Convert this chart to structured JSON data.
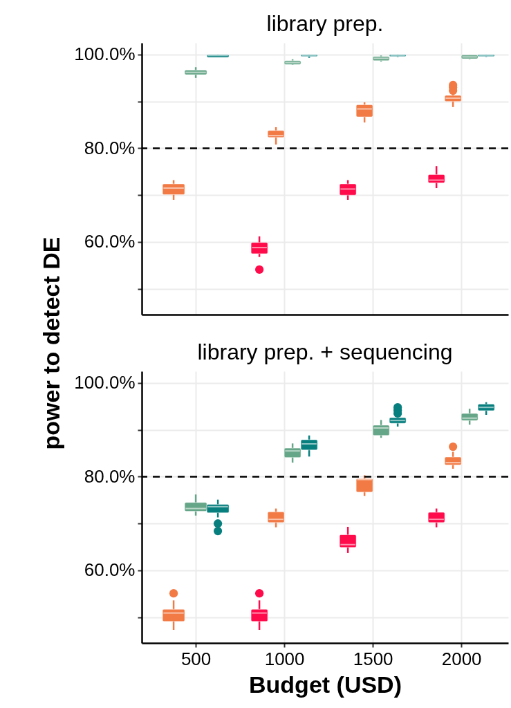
{
  "chart_data": [
    {
      "type": "box",
      "title": "library prep.",
      "ylabel": "power to detect DE",
      "categories": [
        "500",
        "1000",
        "1500",
        "2000"
      ],
      "ylim": [
        44.5,
        102.5
      ],
      "yticks": [
        {
          "value": 50,
          "label": null
        },
        {
          "value": 60,
          "label": "60.0%"
        },
        {
          "value": 70,
          "label": null
        },
        {
          "value": 80,
          "label": "80.0%"
        },
        {
          "value": 90,
          "label": null
        },
        {
          "value": 100,
          "label": "100.0%"
        }
      ],
      "grid": true,
      "tick_labels": "y",
      "ref_lines": [
        {
          "axis": "y",
          "value": 80,
          "color": "#000000",
          "line_style": "dashed"
        }
      ],
      "series": [
        {
          "color": "#ff0a4a",
          "boxes": [
            null,
            {
              "low": 56.8,
              "q1": 57.5,
              "median": 58.8,
              "q3": 59.9,
              "high": 61.2,
              "outliers": [
                54.1
              ]
            },
            {
              "low": 69.0,
              "q1": 70.0,
              "median": 71.3,
              "q3": 72.4,
              "high": 73.2
            },
            {
              "low": 71.5,
              "q1": 72.6,
              "median": 73.2,
              "q3": 74.4,
              "high": 76.2
            }
          ]
        },
        {
          "color": "#f27a45",
          "boxes": [
            {
              "low": 69.0,
              "q1": 70.1,
              "median": 71.5,
              "q3": 72.4,
              "high": 73.2
            },
            {
              "low": 80.8,
              "q1": 82.3,
              "median": 82.7,
              "q3": 83.8,
              "high": 84.5
            },
            {
              "low": 85.5,
              "q1": 86.7,
              "median": 88.4,
              "q3": 89.3,
              "high": 89.8
            },
            {
              "low": 88.8,
              "q1": 90.0,
              "median": 90.7,
              "q3": 91.3,
              "high": 91.5,
              "outliers": [
                92.3,
                93.0,
                93.5
              ]
            }
          ]
        },
        {
          "color": "#66a688",
          "boxes": [
            {
              "low": 95.0,
              "q1": 95.7,
              "median": 96.2,
              "q3": 96.7,
              "high": 97.3
            },
            {
              "low": 97.8,
              "q1": 97.9,
              "median": 98.3,
              "q3": 98.7,
              "high": 99.0
            },
            {
              "low": 98.5,
              "q1": 98.7,
              "median": 99.2,
              "q3": 99.6,
              "high": 99.8
            },
            {
              "low": 99.0,
              "q1": 99.1,
              "median": 99.5,
              "q3": 99.9,
              "high": 99.9
            }
          ]
        },
        {
          "color": "#087f7f",
          "boxes": [
            {
              "low": 99.4,
              "q1": 99.4,
              "median": 99.8,
              "q3": 100.0,
              "high": 100.0
            },
            {
              "low": 99.3,
              "q1": 99.6,
              "median": 99.8,
              "q3": 100.0,
              "high": 100.0
            },
            {
              "low": 99.5,
              "q1": 99.6,
              "median": 99.8,
              "q3": 100.0,
              "high": 100.0
            },
            {
              "low": 99.5,
              "q1": 99.6,
              "median": 99.8,
              "q3": 100.0,
              "high": 100.0
            }
          ]
        }
      ]
    },
    {
      "type": "box",
      "title": "library prep. + sequencing",
      "xlabel": "Budget (USD)",
      "categories": [
        "500",
        "1000",
        "1500",
        "2000"
      ],
      "ylim": [
        44.5,
        102.5
      ],
      "yticks": [
        {
          "value": 50,
          "label": null
        },
        {
          "value": 60,
          "label": "60.0%"
        },
        {
          "value": 70,
          "label": null
        },
        {
          "value": 80,
          "label": "80.0%"
        },
        {
          "value": 90,
          "label": null
        },
        {
          "value": 100,
          "label": "100.0%"
        }
      ],
      "grid": true,
      "ref_lines": [
        {
          "axis": "y",
          "value": 80,
          "color": "#000000",
          "line_style": "dashed"
        }
      ],
      "series": [
        {
          "color": "#ff0a4a",
          "boxes": [
            null,
            {
              "low": 47.3,
              "q1": 49.1,
              "median": 50.9,
              "q3": 51.7,
              "high": 53.6,
              "outliers": [
                55.1
              ]
            },
            {
              "low": 63.7,
              "q1": 64.9,
              "median": 65.5,
              "q3": 67.6,
              "high": 69.3
            },
            {
              "low": 69.2,
              "q1": 70.2,
              "median": 70.9,
              "q3": 72.4,
              "high": 73.2
            }
          ]
        },
        {
          "color": "#f27a45",
          "boxes": [
            {
              "low": 47.3,
              "q1": 49.1,
              "median": 50.9,
              "q3": 51.7,
              "high": 53.6,
              "outliers": [
                55.1
              ]
            },
            {
              "low": 69.2,
              "q1": 70.2,
              "median": 70.9,
              "q3": 72.5,
              "high": 73.2
            },
            {
              "low": 75.9,
              "q1": 76.7,
              "median": 79.4,
              "q3": 79.6,
              "high": 80.3
            },
            {
              "low": 81.7,
              "q1": 82.5,
              "median": 83.0,
              "q3": 84.2,
              "high": 85.3,
              "outliers": [
                86.4
              ]
            }
          ]
        },
        {
          "color": "#66a688",
          "boxes": [
            {
              "low": 71.7,
              "q1": 72.6,
              "median": 73.2,
              "q3": 74.5,
              "high": 76.2
            },
            {
              "low": 83.0,
              "q1": 84.1,
              "median": 85.5,
              "q3": 86.1,
              "high": 87.1
            },
            {
              "low": 88.3,
              "q1": 88.8,
              "median": 90.4,
              "q3": 91.0,
              "high": 92.1
            },
            {
              "low": 91.1,
              "q1": 92.0,
              "median": 92.5,
              "q3": 93.5,
              "high": 94.5
            }
          ]
        },
        {
          "color": "#087f7f",
          "boxes": [
            {
              "low": 71.3,
              "q1": 72.3,
              "median": 73.6,
              "q3": 74.1,
              "high": 75.1,
              "outliers": [
                70.0,
                68.4
              ]
            },
            {
              "low": 84.3,
              "q1": 85.7,
              "median": 87.0,
              "q3": 87.9,
              "high": 88.8
            },
            {
              "low": 90.7,
              "q1": 91.4,
              "median": 92.0,
              "q3": 92.6,
              "high": 92.6,
              "outliers": [
                93.5,
                94.2,
                94.8
              ]
            },
            {
              "low": 93.2,
              "q1": 94.1,
              "median": 94.8,
              "q3": 95.5,
              "high": 95.9
            }
          ]
        }
      ]
    }
  ]
}
